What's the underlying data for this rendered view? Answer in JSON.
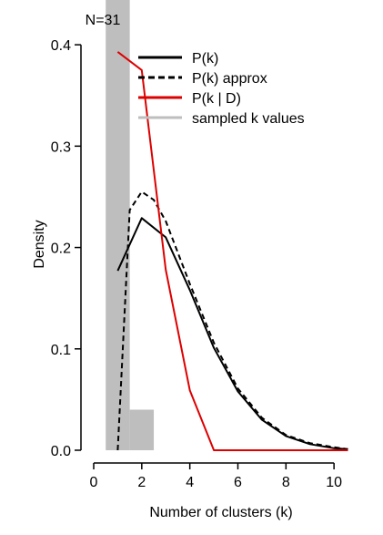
{
  "chart_data": {
    "type": "line",
    "annotation": "N=31",
    "xlabel": "Number of clusters (k)",
    "ylabel": "Density",
    "xlim": [
      0,
      10.6
    ],
    "ylim": [
      0,
      0.41
    ],
    "xticks": [
      0,
      2,
      4,
      6,
      8,
      10
    ],
    "yticks": [
      0.0,
      0.1,
      0.2,
      0.3,
      0.4
    ],
    "ytick_labels": [
      "0.0",
      "0.1",
      "0.2",
      "0.3",
      "0.4"
    ],
    "legend_position": "top-right",
    "histogram": {
      "name": "sampled k values",
      "color": "#bebebe",
      "bins": [
        {
          "x0": 0.5,
          "x1": 1.5,
          "value": 0.96
        },
        {
          "x0": 1.5,
          "x1": 2.5,
          "value": 0.04
        }
      ]
    },
    "series": [
      {
        "name": "P(k)",
        "style": "solid",
        "color": "#000000",
        "x": [
          1,
          2,
          3,
          4,
          5,
          6,
          7,
          8,
          9,
          10,
          11
        ],
        "y": [
          0.177,
          0.229,
          0.21,
          0.158,
          0.101,
          0.058,
          0.03,
          0.014,
          0.006,
          0.002,
          0.001
        ]
      },
      {
        "name": "P(k) approx",
        "style": "dashed",
        "color": "#000000",
        "x": [
          1,
          1.5,
          2,
          2.5,
          3,
          4,
          5,
          6,
          7,
          8,
          9,
          10,
          11
        ],
        "y": [
          0.0,
          0.237,
          0.255,
          0.247,
          0.226,
          0.164,
          0.106,
          0.061,
          0.032,
          0.015,
          0.007,
          0.003,
          0.001
        ]
      },
      {
        "name": "P(k | D)",
        "style": "solid",
        "color": "#dd0000",
        "x": [
          1,
          2,
          3,
          4,
          5,
          6,
          7,
          8,
          9,
          10,
          11
        ],
        "y": [
          0.393,
          0.375,
          0.178,
          0.059,
          0.0,
          0.0,
          0.0,
          0.0,
          0.0,
          0.0,
          0.0
        ]
      }
    ]
  }
}
